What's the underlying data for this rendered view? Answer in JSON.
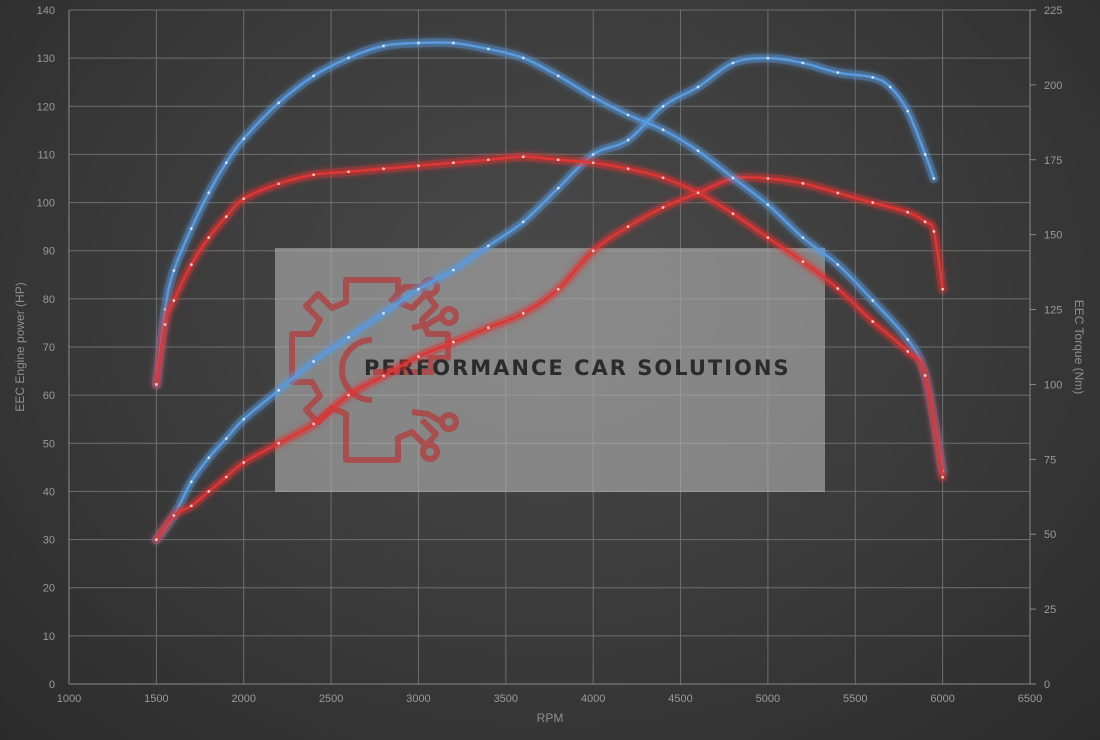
{
  "chart_data": {
    "type": "line",
    "xlabel": "RPM",
    "ylabel_left": "EEC Engine power (HP)",
    "ylabel_right": "EEC Torque (Nm)",
    "xlim": [
      1000,
      6500
    ],
    "ylim_left": [
      0,
      140
    ],
    "ylim_right": [
      0,
      225
    ],
    "x_ticks": [
      1000,
      1500,
      2000,
      2500,
      3000,
      3500,
      4000,
      4500,
      5000,
      5500,
      6000,
      6500
    ],
    "y_left_ticks": [
      0,
      10,
      20,
      30,
      40,
      50,
      60,
      70,
      80,
      90,
      100,
      110,
      120,
      130,
      140
    ],
    "y_right_ticks": [
      0,
      25,
      50,
      75,
      100,
      125,
      150,
      175,
      200,
      225
    ],
    "grid": true,
    "series": [
      {
        "axis": "left",
        "color": "#5a9be0",
        "points": [
          [
            1500,
            30
          ],
          [
            1600,
            35
          ],
          [
            1700,
            42
          ],
          [
            1800,
            47
          ],
          [
            1900,
            51
          ],
          [
            2000,
            55
          ],
          [
            2200,
            61
          ],
          [
            2400,
            67
          ],
          [
            2600,
            72
          ],
          [
            2800,
            77
          ],
          [
            3000,
            82
          ],
          [
            3200,
            86
          ],
          [
            3400,
            91
          ],
          [
            3600,
            96
          ],
          [
            3800,
            103
          ],
          [
            4000,
            110
          ],
          [
            4200,
            113
          ],
          [
            4400,
            120
          ],
          [
            4600,
            124
          ],
          [
            4800,
            129
          ],
          [
            5000,
            130
          ],
          [
            5200,
            129
          ],
          [
            5400,
            127
          ],
          [
            5600,
            126
          ],
          [
            5700,
            124
          ],
          [
            5800,
            119
          ],
          [
            5900,
            110
          ],
          [
            5950,
            105
          ]
        ]
      },
      {
        "axis": "left",
        "color": "#e03535",
        "points": [
          [
            1500,
            30
          ],
          [
            1600,
            35
          ],
          [
            1700,
            37
          ],
          [
            1800,
            40
          ],
          [
            1900,
            43
          ],
          [
            2000,
            46
          ],
          [
            2200,
            50
          ],
          [
            2400,
            54
          ],
          [
            2600,
            60
          ],
          [
            2800,
            64
          ],
          [
            3000,
            68
          ],
          [
            3200,
            71
          ],
          [
            3400,
            74
          ],
          [
            3600,
            77
          ],
          [
            3800,
            82
          ],
          [
            4000,
            90
          ],
          [
            4200,
            95
          ],
          [
            4400,
            99
          ],
          [
            4600,
            102
          ],
          [
            4800,
            105
          ],
          [
            5000,
            105
          ],
          [
            5200,
            104
          ],
          [
            5400,
            102
          ],
          [
            5600,
            100
          ],
          [
            5800,
            98
          ],
          [
            5900,
            96
          ],
          [
            5950,
            94
          ],
          [
            6000,
            82
          ]
        ]
      },
      {
        "axis": "right",
        "color": "#5a9be0",
        "points": [
          [
            1500,
            100
          ],
          [
            1550,
            125
          ],
          [
            1600,
            138
          ],
          [
            1700,
            152
          ],
          [
            1800,
            164
          ],
          [
            1900,
            174
          ],
          [
            2000,
            182
          ],
          [
            2200,
            194
          ],
          [
            2400,
            203
          ],
          [
            2600,
            209
          ],
          [
            2800,
            213
          ],
          [
            3000,
            214
          ],
          [
            3200,
            214
          ],
          [
            3400,
            212
          ],
          [
            3600,
            209
          ],
          [
            3800,
            203
          ],
          [
            4000,
            196
          ],
          [
            4200,
            190
          ],
          [
            4400,
            185
          ],
          [
            4600,
            178
          ],
          [
            4800,
            169
          ],
          [
            5000,
            160
          ],
          [
            5200,
            149
          ],
          [
            5400,
            140
          ],
          [
            5600,
            128
          ],
          [
            5800,
            115
          ],
          [
            5900,
            103
          ],
          [
            6000,
            71
          ]
        ]
      },
      {
        "axis": "right",
        "color": "#e03535",
        "points": [
          [
            1500,
            100
          ],
          [
            1550,
            120
          ],
          [
            1600,
            128
          ],
          [
            1700,
            140
          ],
          [
            1800,
            149
          ],
          [
            1900,
            156
          ],
          [
            2000,
            162
          ],
          [
            2200,
            167
          ],
          [
            2400,
            170
          ],
          [
            2600,
            171
          ],
          [
            2800,
            172
          ],
          [
            3000,
            173
          ],
          [
            3200,
            174
          ],
          [
            3400,
            175
          ],
          [
            3600,
            176
          ],
          [
            3800,
            175
          ],
          [
            4000,
            174
          ],
          [
            4200,
            172
          ],
          [
            4400,
            169
          ],
          [
            4600,
            164
          ],
          [
            4800,
            157
          ],
          [
            5000,
            149
          ],
          [
            5200,
            141
          ],
          [
            5400,
            132
          ],
          [
            5600,
            121
          ],
          [
            5800,
            111
          ],
          [
            5900,
            103
          ],
          [
            6000,
            69
          ]
        ]
      }
    ]
  },
  "watermark": {
    "text": "PERFORMANCE CAR SOLUTIONS",
    "logo_icon": "gear-circuit-logo-icon",
    "logo_color": "#b43c3c"
  }
}
